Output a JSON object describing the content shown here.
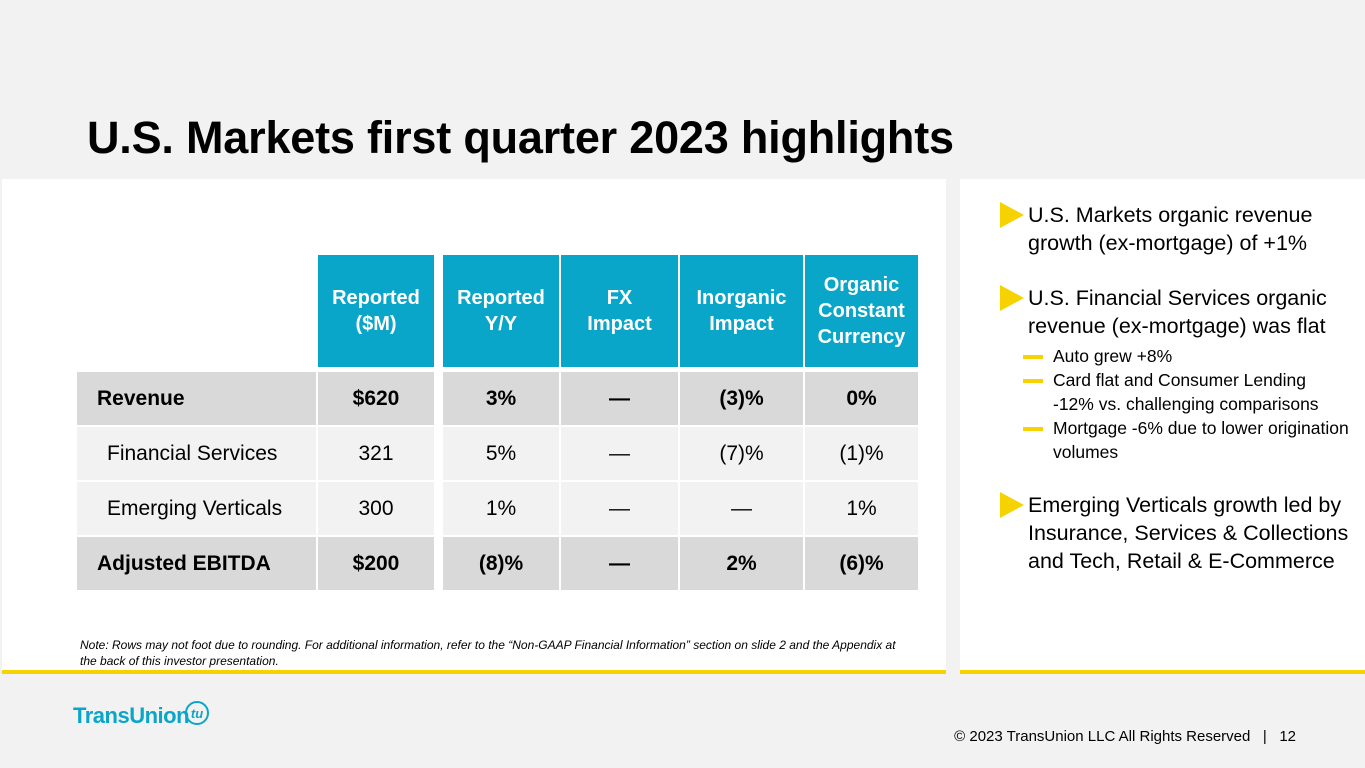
{
  "title": "U.S. Markets first quarter 2023 highlights",
  "table": {
    "headers": [
      "Reported ($M)",
      "Reported Y/Y",
      "FX Impact",
      "Inorganic Impact",
      "Organic Constant Currency"
    ],
    "header_lines": [
      [
        "Reported",
        "($M)"
      ],
      [
        "Reported",
        "Y/Y"
      ],
      [
        "FX",
        "Impact"
      ],
      [
        "Inorganic",
        "Impact"
      ],
      [
        "Organic",
        "Constant",
        "Currency"
      ]
    ],
    "rows": [
      {
        "label": "Revenue",
        "values": [
          "$620",
          "3%",
          "—",
          "(3)%",
          "0%"
        ]
      },
      {
        "label": "Financial Services",
        "values": [
          "321",
          "5%",
          "—",
          "(7)%",
          "(1)%"
        ]
      },
      {
        "label": "Emerging Verticals",
        "values": [
          "300",
          "1%",
          "—",
          "—",
          "1%"
        ]
      },
      {
        "label": "Adjusted EBITDA",
        "values": [
          "$200",
          "(8)%",
          "—",
          "2%",
          "(6)%"
        ]
      }
    ]
  },
  "note": "Note:  Rows may not foot due to rounding. For additional information, refer to the “Non-GAAP Financial Information” section on slide 2 and the Appendix at the back of this investor presentation.",
  "bullets": [
    {
      "text": "U.S. Markets organic revenue growth (ex-mortgage) of +1%",
      "subs": []
    },
    {
      "text": "U.S. Financial Services organic revenue (ex-mortgage) was flat",
      "subs": [
        "Auto grew +8%",
        "Card flat and Consumer Lending -12% vs. challenging comparisons",
        "Mortgage -6% due to lower origination volumes"
      ]
    },
    {
      "text": "Emerging Verticals growth led by Insurance, Services & Collections and Tech, Retail & E-Commerce",
      "subs": []
    }
  ],
  "logo": {
    "text": "TransUnion",
    "mark": "tu"
  },
  "footer": {
    "copyright": "© 2023 TransUnion LLC All Rights Reserved",
    "separator": "|",
    "page": "12"
  },
  "colors": {
    "accent": "#0aa6c9",
    "highlight": "#f6d300",
    "row_dark": "#d9d9d9",
    "row_light": "#f2f2f2"
  }
}
